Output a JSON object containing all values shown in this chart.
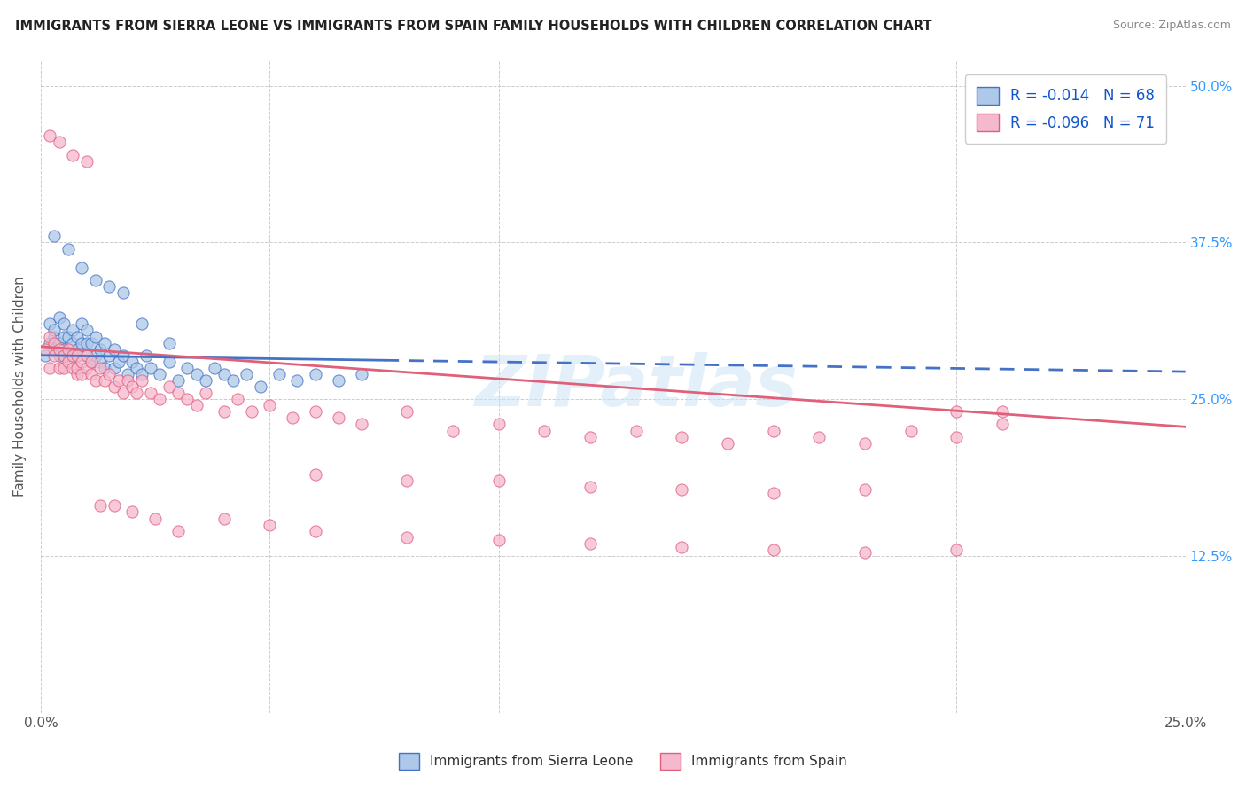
{
  "title": "IMMIGRANTS FROM SIERRA LEONE VS IMMIGRANTS FROM SPAIN FAMILY HOUSEHOLDS WITH CHILDREN CORRELATION CHART",
  "source": "Source: ZipAtlas.com",
  "ylabel": "Family Households with Children",
  "xlim": [
    0.0,
    0.25
  ],
  "ylim": [
    0.0,
    0.52
  ],
  "legend_label1": "R = -0.014   N = 68",
  "legend_label2": "R = -0.096   N = 71",
  "legend_bottom_label1": "Immigrants from Sierra Leone",
  "legend_bottom_label2": "Immigrants from Spain",
  "color_sierra": "#adc8e8",
  "color_spain": "#f5b8ce",
  "line_color_sierra": "#4472c4",
  "line_color_spain": "#e0607a",
  "watermark": "ZIPatlas",
  "sierra_leone_x": [
    0.001,
    0.002,
    0.002,
    0.003,
    0.003,
    0.003,
    0.004,
    0.004,
    0.004,
    0.005,
    0.005,
    0.005,
    0.006,
    0.006,
    0.007,
    0.007,
    0.007,
    0.008,
    0.008,
    0.008,
    0.009,
    0.009,
    0.01,
    0.01,
    0.01,
    0.011,
    0.011,
    0.012,
    0.012,
    0.013,
    0.013,
    0.014,
    0.014,
    0.015,
    0.016,
    0.016,
    0.017,
    0.018,
    0.019,
    0.02,
    0.021,
    0.022,
    0.023,
    0.024,
    0.026,
    0.028,
    0.03,
    0.032,
    0.034,
    0.036,
    0.038,
    0.04,
    0.042,
    0.045,
    0.048,
    0.052,
    0.056,
    0.06,
    0.065,
    0.07,
    0.003,
    0.006,
    0.009,
    0.012,
    0.015,
    0.018,
    0.022,
    0.028
  ],
  "sierra_leone_y": [
    0.285,
    0.295,
    0.31,
    0.3,
    0.29,
    0.305,
    0.285,
    0.295,
    0.315,
    0.29,
    0.3,
    0.31,
    0.285,
    0.3,
    0.295,
    0.285,
    0.305,
    0.29,
    0.3,
    0.285,
    0.295,
    0.31,
    0.285,
    0.295,
    0.305,
    0.28,
    0.295,
    0.285,
    0.3,
    0.29,
    0.28,
    0.295,
    0.275,
    0.285,
    0.29,
    0.275,
    0.28,
    0.285,
    0.27,
    0.28,
    0.275,
    0.27,
    0.285,
    0.275,
    0.27,
    0.28,
    0.265,
    0.275,
    0.27,
    0.265,
    0.275,
    0.27,
    0.265,
    0.27,
    0.26,
    0.27,
    0.265,
    0.27,
    0.265,
    0.27,
    0.38,
    0.37,
    0.355,
    0.345,
    0.34,
    0.335,
    0.31,
    0.295
  ],
  "spain_x": [
    0.001,
    0.002,
    0.002,
    0.003,
    0.003,
    0.004,
    0.004,
    0.005,
    0.005,
    0.006,
    0.006,
    0.007,
    0.007,
    0.008,
    0.008,
    0.008,
    0.009,
    0.009,
    0.01,
    0.01,
    0.011,
    0.011,
    0.012,
    0.013,
    0.014,
    0.015,
    0.016,
    0.017,
    0.018,
    0.019,
    0.02,
    0.021,
    0.022,
    0.024,
    0.026,
    0.028,
    0.03,
    0.032,
    0.034,
    0.036,
    0.04,
    0.043,
    0.046,
    0.05,
    0.055,
    0.06,
    0.065,
    0.07,
    0.08,
    0.09,
    0.1,
    0.11,
    0.12,
    0.13,
    0.14,
    0.15,
    0.16,
    0.17,
    0.18,
    0.19,
    0.2,
    0.21,
    0.06,
    0.08,
    0.1,
    0.12,
    0.14,
    0.16,
    0.18,
    0.2,
    0.21
  ],
  "spain_y": [
    0.29,
    0.3,
    0.275,
    0.285,
    0.295,
    0.275,
    0.29,
    0.285,
    0.275,
    0.29,
    0.28,
    0.275,
    0.285,
    0.27,
    0.285,
    0.275,
    0.28,
    0.27,
    0.285,
    0.275,
    0.27,
    0.28,
    0.265,
    0.275,
    0.265,
    0.27,
    0.26,
    0.265,
    0.255,
    0.265,
    0.26,
    0.255,
    0.265,
    0.255,
    0.25,
    0.26,
    0.255,
    0.25,
    0.245,
    0.255,
    0.24,
    0.25,
    0.24,
    0.245,
    0.235,
    0.24,
    0.235,
    0.23,
    0.24,
    0.225,
    0.23,
    0.225,
    0.22,
    0.225,
    0.22,
    0.215,
    0.225,
    0.22,
    0.215,
    0.225,
    0.22,
    0.24,
    0.19,
    0.185,
    0.185,
    0.18,
    0.178,
    0.175,
    0.178,
    0.24,
    0.23
  ],
  "spain_extra_x": [
    0.002,
    0.004,
    0.007,
    0.01,
    0.013,
    0.016,
    0.02,
    0.025,
    0.03,
    0.04,
    0.05,
    0.06,
    0.08,
    0.1,
    0.12,
    0.14,
    0.16,
    0.18,
    0.2
  ],
  "spain_extra_y": [
    0.46,
    0.455,
    0.445,
    0.44,
    0.165,
    0.165,
    0.16,
    0.155,
    0.145,
    0.155,
    0.15,
    0.145,
    0.14,
    0.138,
    0.135,
    0.132,
    0.13,
    0.128,
    0.13
  ],
  "trend_sl_x0": 0.0,
  "trend_sl_x1": 0.25,
  "trend_sl_y0": 0.285,
  "trend_sl_y1": 0.272,
  "trend_sp_x0": 0.0,
  "trend_sp_x1": 0.25,
  "trend_sp_y0": 0.292,
  "trend_sp_y1": 0.228
}
